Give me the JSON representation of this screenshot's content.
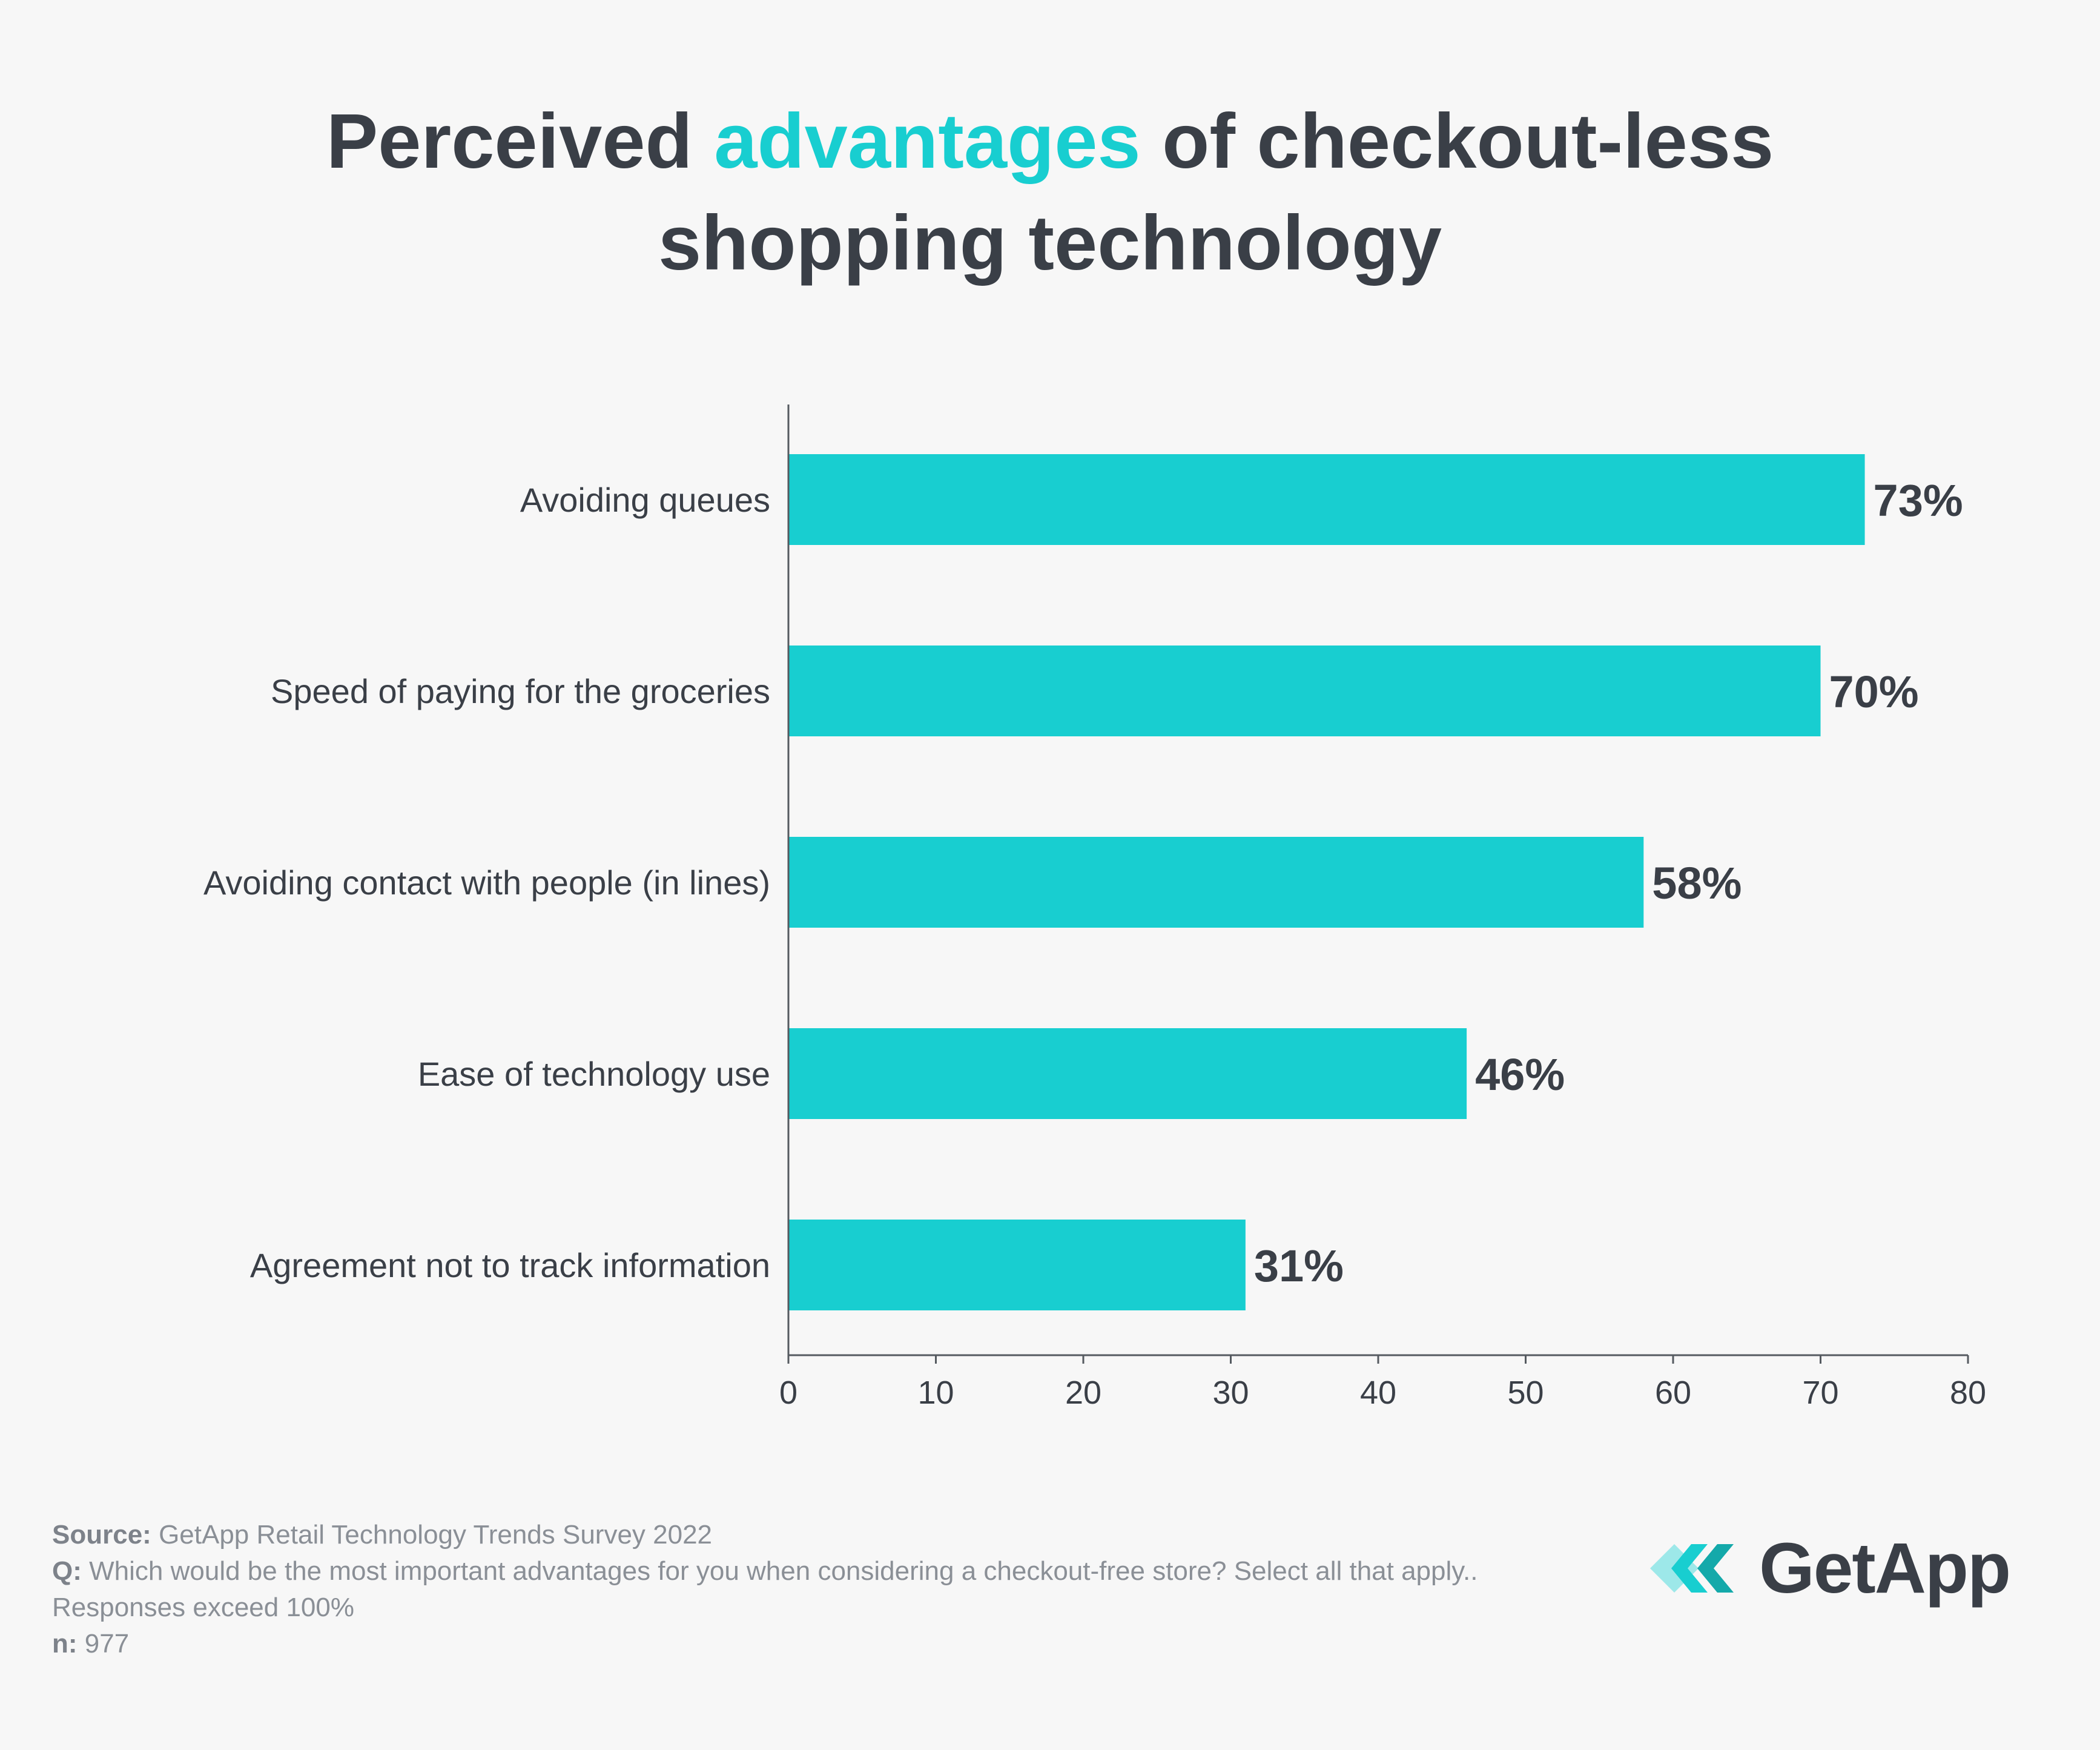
{
  "title": {
    "part1": "Perceived ",
    "highlight": "advantages",
    "part2": " of checkout-less",
    "line2": "shopping technology"
  },
  "colors": {
    "bar": "#18ced0",
    "text": "#3a3f47",
    "axis": "#555a60"
  },
  "chart_data": {
    "type": "bar",
    "orientation": "horizontal",
    "title": "Perceived advantages of checkout-less shopping technology",
    "categories": [
      "Avoiding queues",
      "Speed of paying for the groceries",
      "Avoiding contact with people (in lines)",
      "Ease of technology use",
      "Agreement not to track information"
    ],
    "values": [
      73,
      70,
      58,
      46,
      31
    ],
    "value_labels": [
      "73%",
      "70%",
      "58%",
      "46%",
      "31%"
    ],
    "xlim": [
      0,
      80
    ],
    "xticks": [
      "0",
      "10",
      "20",
      "30",
      "40",
      "50",
      "60",
      "70",
      "80"
    ],
    "xlabel": "",
    "ylabel": "",
    "grid": false
  },
  "footer": {
    "source_label": "Source:",
    "source_text": "GetApp Retail Technology Trends Survey 2022",
    "q_label": "Q:",
    "q_text": "Which would be the most important advantages for you when considering a checkout-free store? Select all that apply.. Responses exceed 100%",
    "n_label": "n:",
    "n_text": "977"
  },
  "logo": {
    "text": "GetApp",
    "icon": "getapp-chevron-icon"
  }
}
